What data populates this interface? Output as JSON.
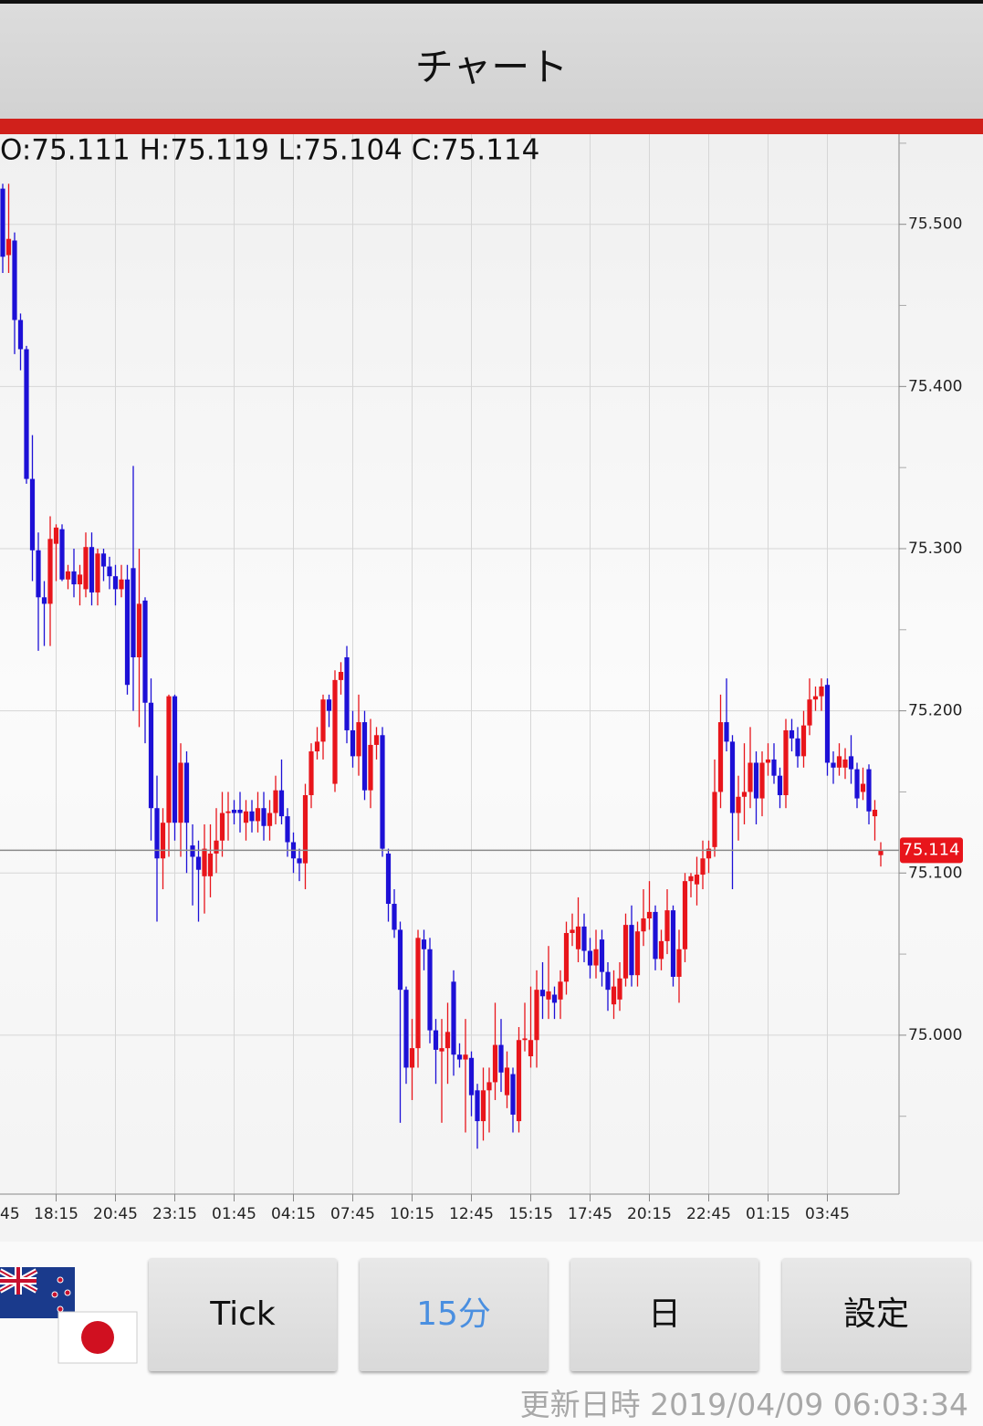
{
  "header": {
    "title": "チャート"
  },
  "info_text": "O:75.111 H:75.119 L:75.104 C:75.114",
  "chart_data": {
    "type": "candlestick",
    "categories": [
      "45",
      null,
      null,
      null,
      null,
      null,
      null,
      null,
      null,
      null,
      "18:15",
      null,
      null,
      null,
      null,
      null,
      null,
      null,
      null,
      null,
      "20:45",
      null,
      null,
      null,
      null,
      null,
      null,
      null,
      null,
      null,
      "23:15",
      null,
      null,
      null,
      null,
      null,
      null,
      null,
      null,
      null,
      "01:45",
      null,
      null,
      null,
      null,
      null,
      null,
      null,
      null,
      null,
      "04:15",
      null,
      null,
      null,
      null,
      null,
      null,
      null,
      null,
      null,
      "07:45",
      null,
      null,
      null,
      null,
      null,
      null,
      null,
      null,
      null,
      "10:15",
      null,
      null,
      null,
      null,
      null,
      null,
      null,
      null,
      null,
      "12:45",
      null,
      null,
      null,
      null,
      null,
      null,
      null,
      null,
      null,
      "15:15",
      null,
      null,
      null,
      null,
      null,
      null,
      null,
      null,
      null,
      "17:45",
      null,
      null,
      null,
      null,
      null,
      null,
      null,
      null,
      null,
      "20:15",
      null,
      null,
      null,
      null,
      null,
      null,
      null,
      null,
      null,
      "22:45",
      null,
      null,
      null,
      null,
      null,
      null,
      null,
      null,
      null,
      "01:15",
      null,
      null,
      null,
      null,
      null,
      null,
      null,
      null,
      null,
      "03:45",
      null,
      null,
      null,
      null,
      null,
      null,
      null,
      null,
      null
    ],
    "open": [
      null,
      75.522,
      75.481,
      75.49,
      75.441,
      75.423,
      75.343,
      75.299,
      75.27,
      75.266,
      75.303,
      75.312,
      75.281,
      75.286,
      75.278,
      75.275,
      75.301,
      75.273,
      75.297,
      75.289,
      75.283,
      75.275,
      75.281,
      75.288,
      75.233,
      75.268,
      75.205,
      75.14,
      75.109,
      75.131,
      75.209,
      75.131,
      75.168,
      75.117,
      75.11,
      75.098,
      75.098,
      75.112,
      75.12,
      75.137,
      75.139,
      75.139,
      75.131,
      75.138,
      75.132,
      75.14,
      75.129,
      75.137,
      75.151,
      75.135,
      75.119,
      75.109,
      75.106,
      75.148,
      75.175,
      75.181,
      75.207,
      75.155,
      75.219,
      75.233,
      75.188,
      75.172,
      75.193,
      75.151,
      75.179,
      75.185,
      75.112,
      75.081,
      75.065,
      75.028,
      74.98,
      74.992,
      75.059,
      75.053,
      75.003,
      74.99,
      74.992,
      75.033,
      74.988,
      74.985,
      74.986,
      74.966,
      74.947,
      74.966,
      74.971,
      74.994,
      74.963,
      74.976,
      74.947,
      74.997,
      74.987,
      74.997,
      75.028,
      75.022,
      75.025,
      75.022,
      75.033,
      75.063,
      75.053,
      75.067,
      75.052,
      75.043,
      75.059,
      75.039,
      75.019,
      75.022,
      75.035,
      75.068,
      75.037,
      75.064,
      75.072,
      75.076,
      75.047,
      75.058,
      75.077,
      75.036,
      75.053,
      75.095,
      75.093,
      75.099,
      75.109,
      75.116,
      75.15,
      75.193,
      75.181,
      75.137,
      75.147,
      75.15,
      75.168,
      75.146,
      75.168,
      75.17,
      75.16,
      75.148,
      75.188,
      75.183,
      75.172,
      75.191,
      75.207,
      75.209,
      75.216,
      75.168,
      75.165,
      75.165,
      75.172,
      75.164,
      75.15,
      75.164,
      75.135,
      75.111
    ],
    "high": [
      null,
      75.525,
      75.525,
      75.495,
      75.445,
      75.425,
      75.37,
      75.31,
      75.28,
      75.32,
      75.315,
      75.315,
      75.29,
      75.3,
      75.29,
      75.31,
      75.31,
      75.3,
      75.3,
      75.295,
      75.29,
      75.29,
      75.29,
      75.351,
      75.3,
      75.27,
      75.22,
      75.16,
      75.14,
      75.21,
      75.21,
      75.18,
      75.175,
      75.13,
      75.12,
      75.13,
      75.13,
      75.14,
      75.15,
      75.15,
      75.145,
      75.15,
      75.145,
      75.145,
      75.15,
      75.15,
      75.145,
      75.16,
      75.17,
      75.14,
      75.125,
      75.115,
      75.155,
      75.18,
      75.19,
      75.21,
      75.21,
      75.225,
      75.23,
      75.24,
      75.2,
      75.21,
      75.2,
      75.195,
      75.19,
      75.19,
      75.115,
      75.09,
      75.07,
      75.03,
      75.01,
      75.065,
      75.065,
      75.06,
      75.01,
      75.01,
      75.02,
      75.04,
      74.995,
      75.01,
      74.99,
      74.97,
      74.98,
      74.98,
      75.02,
      75.01,
      74.99,
      74.98,
      75.005,
      75.02,
      75.03,
      75.04,
      75.045,
      75.055,
      75.03,
      75.04,
      75.07,
      75.075,
      75.085,
      75.075,
      75.06,
      75.065,
      75.065,
      75.045,
      75.04,
      75.045,
      75.075,
      75.08,
      75.07,
      75.09,
      75.095,
      75.08,
      75.065,
      75.09,
      75.08,
      75.065,
      75.1,
      75.1,
      75.11,
      75.12,
      75.12,
      75.17,
      75.21,
      75.22,
      75.185,
      75.16,
      75.18,
      75.19,
      75.175,
      75.175,
      75.18,
      75.18,
      75.165,
      75.195,
      75.195,
      75.19,
      75.2,
      75.22,
      75.215,
      75.22,
      75.22,
      75.175,
      75.18,
      75.177,
      75.185,
      75.168,
      75.165,
      75.167,
      75.145,
      75.119
    ],
    "low": [
      null,
      75.47,
      75.47,
      75.42,
      75.41,
      75.34,
      75.28,
      75.237,
      75.24,
      75.24,
      75.28,
      75.28,
      75.275,
      75.27,
      75.265,
      75.27,
      75.265,
      75.265,
      75.28,
      75.275,
      75.265,
      75.27,
      75.21,
      75.2,
      75.19,
      75.18,
      75.12,
      75.07,
      75.09,
      75.11,
      75.12,
      75.11,
      75.1,
      75.08,
      75.07,
      75.075,
      75.085,
      75.1,
      75.11,
      75.12,
      75.13,
      75.125,
      75.12,
      75.125,
      75.125,
      75.12,
      75.12,
      75.13,
      75.13,
      75.11,
      75.1,
      75.095,
      75.09,
      75.14,
      75.17,
      75.17,
      75.19,
      75.15,
      75.21,
      75.18,
      75.165,
      75.16,
      75.145,
      75.14,
      75.17,
      75.11,
      75.07,
      75.06,
      74.946,
      74.97,
      74.96,
      74.98,
      75.04,
      74.995,
      74.97,
      74.946,
      74.97,
      74.975,
      74.98,
      74.94,
      74.95,
      74.93,
      74.935,
      74.94,
      74.96,
      74.965,
      74.955,
      74.94,
      74.94,
      74.99,
      74.98,
      74.98,
      75.01,
      75.01,
      75.01,
      75.01,
      75.025,
      75.055,
      75.045,
      75.045,
      75.035,
      75.035,
      75.03,
      75.015,
      75.01,
      75.015,
      75.03,
      75.03,
      75.03,
      75.055,
      75.065,
      75.04,
      75.04,
      75.05,
      75.03,
      75.02,
      75.045,
      75.085,
      75.08,
      75.09,
      75.1,
      75.11,
      75.14,
      75.175,
      75.09,
      75.12,
      75.13,
      75.14,
      75.13,
      75.135,
      75.16,
      75.155,
      75.14,
      75.14,
      75.175,
      75.165,
      75.165,
      75.185,
      75.2,
      75.2,
      75.16,
      75.155,
      75.16,
      75.158,
      75.155,
      75.14,
      75.145,
      75.13,
      75.12,
      75.104
    ],
    "close": [
      null,
      75.48,
      75.491,
      75.441,
      75.423,
      75.343,
      75.299,
      75.27,
      75.266,
      75.306,
      75.313,
      75.281,
      75.286,
      75.278,
      75.284,
      75.301,
      75.273,
      75.297,
      75.289,
      75.283,
      75.275,
      75.281,
      75.216,
      75.233,
      75.266,
      75.205,
      75.14,
      75.109,
      75.131,
      75.209,
      75.131,
      75.168,
      75.131,
      75.11,
      75.102,
      75.115,
      75.112,
      75.12,
      75.137,
      75.138,
      75.137,
      75.137,
      75.138,
      75.132,
      75.14,
      75.129,
      75.137,
      75.151,
      75.135,
      75.119,
      75.109,
      75.106,
      75.148,
      75.175,
      75.181,
      75.207,
      75.2,
      75.219,
      75.224,
      75.188,
      75.172,
      75.193,
      75.151,
      75.179,
      75.185,
      75.115,
      75.081,
      75.065,
      75.028,
      74.98,
      74.992,
      75.06,
      75.053,
      75.003,
      74.991,
      74.992,
      75.002,
      74.988,
      74.985,
      74.988,
      74.963,
      74.947,
      74.966,
      74.971,
      74.994,
      74.977,
      74.98,
      74.951,
      74.997,
      74.998,
      74.997,
      75.028,
      75.024,
      75.027,
      75.02,
      75.033,
      75.063,
      75.065,
      75.067,
      75.052,
      75.043,
      75.053,
      75.039,
      75.028,
      75.03,
      75.035,
      75.068,
      75.037,
      75.064,
      75.072,
      75.076,
      75.047,
      75.058,
      75.077,
      75.036,
      75.053,
      75.095,
      75.098,
      75.099,
      75.109,
      75.115,
      75.15,
      75.193,
      75.181,
      75.137,
      75.147,
      75.15,
      75.168,
      75.146,
      75.168,
      75.17,
      75.16,
      75.148,
      75.188,
      75.183,
      75.172,
      75.191,
      75.207,
      75.209,
      75.215,
      75.168,
      75.165,
      75.172,
      75.17,
      75.164,
      75.146,
      75.155,
      75.138,
      75.139,
      75.114
    ],
    "up_color": "#e8151b",
    "down_color": "#1d10d6",
    "ylim": [
      74.902,
      75.555
    ],
    "yticks": [
      {
        "value": 75.0,
        "label": "75.000"
      },
      {
        "value": 75.1,
        "label": "75.100"
      },
      {
        "value": 75.2,
        "label": "75.200"
      },
      {
        "value": 75.3,
        "label": "75.300"
      },
      {
        "value": 75.4,
        "label": "75.400"
      },
      {
        "value": 75.5,
        "label": "75.500"
      }
    ],
    "yminorticks": [
      74.95,
      75.05,
      75.15,
      75.25,
      75.35,
      75.45,
      75.55
    ],
    "grid": true,
    "last_price": 75.114
  },
  "buttons": [
    "Tick",
    "15分",
    "日",
    "設定"
  ],
  "footer": "更新日時 2019/04/09 06:03:34"
}
